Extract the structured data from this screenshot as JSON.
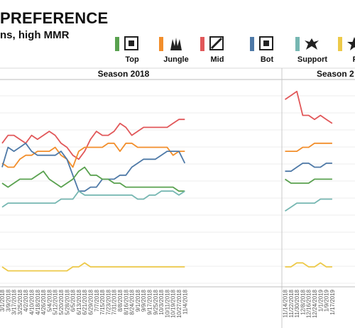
{
  "header": {
    "title": "PREFERENCE",
    "subtitle": "ns, high MMR"
  },
  "legend": [
    {
      "label": "Top",
      "color": "#59a14f",
      "icon": "top-lane-icon"
    },
    {
      "label": "Jungle",
      "color": "#f28e2b",
      "icon": "jungle-icon"
    },
    {
      "label": "Mid",
      "color": "#e15759",
      "icon": "mid-lane-icon"
    },
    {
      "label": "Bot",
      "color": "#4e79a7",
      "icon": "bot-lane-icon"
    },
    {
      "label": "Support",
      "color": "#76b7b2",
      "icon": "support-icon"
    },
    {
      "label": "F",
      "color": "#edc948",
      "icon": "fill-icon"
    }
  ],
  "chart_data": {
    "type": "line",
    "panels": [
      "Season 2018",
      "Season 2"
    ],
    "x": [
      "3/1/2018",
      "3/9/2018",
      "3/17/2018",
      "3/25/2018",
      "4/2/2018",
      "4/10/2018",
      "4/18/2018",
      "4/26/2018",
      "5/4/2018",
      "5/12/2018",
      "5/20/2018",
      "5/28/2018",
      "6/5/2018",
      "6/13/2018",
      "6/21/2018",
      "6/29/2018",
      "7/7/2018",
      "7/15/2018",
      "7/23/2018",
      "7/31/2018",
      "8/8/2018",
      "8/16/2018",
      "8/24/2018",
      "9/1/2018",
      "9/9/2018",
      "9/17/2018",
      "9/25/2018",
      "10/3/2018",
      "10/11/2018",
      "10/19/2018",
      "10/27/2018",
      "11/4/2018",
      "11/14/2018",
      "11/22/2018",
      "11/30/2018",
      "12/8/2018",
      "12/16/2018",
      "12/24/2018",
      "1/1/2019",
      "1/9/2019",
      "1/17/2019"
    ],
    "season_break_index": 32,
    "series": [
      {
        "name": "Mid",
        "color": "#e15759",
        "values": [
          0.3,
          0.29,
          0.29,
          0.295,
          0.3,
          0.29,
          0.295,
          0.29,
          0.285,
          0.29,
          0.3,
          0.305,
          0.315,
          0.32,
          0.31,
          0.295,
          0.285,
          0.29,
          0.29,
          0.285,
          0.275,
          0.28,
          0.29,
          0.285,
          0.28,
          0.28,
          0.28,
          0.28,
          0.28,
          0.275,
          0.27,
          0.27,
          0.245,
          0.24,
          0.235,
          0.265,
          0.265,
          0.27,
          0.265,
          0.27,
          0.275
        ]
      },
      {
        "name": "Jungle",
        "color": "#f28e2b",
        "values": [
          0.325,
          0.33,
          0.33,
          0.32,
          0.315,
          0.315,
          0.31,
          0.31,
          0.31,
          0.305,
          0.315,
          0.32,
          0.33,
          0.31,
          0.305,
          0.305,
          0.305,
          0.305,
          0.3,
          0.3,
          0.31,
          0.3,
          0.3,
          0.305,
          0.305,
          0.305,
          0.305,
          0.305,
          0.305,
          0.315,
          0.31,
          0.31,
          0.31,
          0.31,
          0.31,
          0.305,
          0.305,
          0.3,
          0.3,
          0.3,
          0.3
        ]
      },
      {
        "name": "Bot",
        "color": "#4e79a7",
        "values": [
          0.33,
          0.305,
          0.31,
          0.305,
          0.3,
          0.31,
          0.315,
          0.315,
          0.315,
          0.315,
          0.31,
          0.32,
          0.34,
          0.36,
          0.36,
          0.355,
          0.355,
          0.345,
          0.345,
          0.345,
          0.34,
          0.34,
          0.33,
          0.325,
          0.32,
          0.32,
          0.32,
          0.315,
          0.31,
          0.31,
          0.31,
          0.325,
          0.335,
          0.335,
          0.33,
          0.325,
          0.325,
          0.33,
          0.33,
          0.325,
          0.325
        ]
      },
      {
        "name": "Top",
        "color": "#59a14f",
        "values": [
          0.35,
          0.355,
          0.35,
          0.345,
          0.345,
          0.345,
          0.34,
          0.335,
          0.345,
          0.35,
          0.355,
          0.35,
          0.345,
          0.335,
          0.33,
          0.34,
          0.34,
          0.345,
          0.345,
          0.35,
          0.35,
          0.355,
          0.355,
          0.355,
          0.355,
          0.355,
          0.355,
          0.355,
          0.355,
          0.355,
          0.36,
          0.36,
          0.345,
          0.35,
          0.35,
          0.35,
          0.35,
          0.345,
          0.345,
          0.345,
          0.345
        ]
      },
      {
        "name": "Support",
        "color": "#76b7b2",
        "values": [
          0.38,
          0.375,
          0.375,
          0.375,
          0.375,
          0.375,
          0.375,
          0.375,
          0.375,
          0.375,
          0.37,
          0.37,
          0.37,
          0.36,
          0.365,
          0.365,
          0.365,
          0.365,
          0.365,
          0.365,
          0.365,
          0.365,
          0.365,
          0.37,
          0.37,
          0.365,
          0.365,
          0.36,
          0.36,
          0.36,
          0.365,
          0.36,
          0.385,
          0.38,
          0.375,
          0.375,
          0.375,
          0.375,
          0.37,
          0.37,
          0.37
        ]
      },
      {
        "name": "F",
        "color": "#edc948",
        "values": [
          0.455,
          0.46,
          0.46,
          0.46,
          0.46,
          0.46,
          0.46,
          0.46,
          0.46,
          0.46,
          0.46,
          0.46,
          0.455,
          0.455,
          0.45,
          0.455,
          0.455,
          0.455,
          0.455,
          0.455,
          0.455,
          0.455,
          0.455,
          0.455,
          0.455,
          0.455,
          0.455,
          0.455,
          0.455,
          0.455,
          0.455,
          0.455,
          0.455,
          0.455,
          0.45,
          0.45,
          0.455,
          0.455,
          0.45,
          0.455,
          0.455
        ]
      }
    ],
    "xlabel": "",
    "ylabel": "",
    "grid": true,
    "legend_position": "top"
  }
}
